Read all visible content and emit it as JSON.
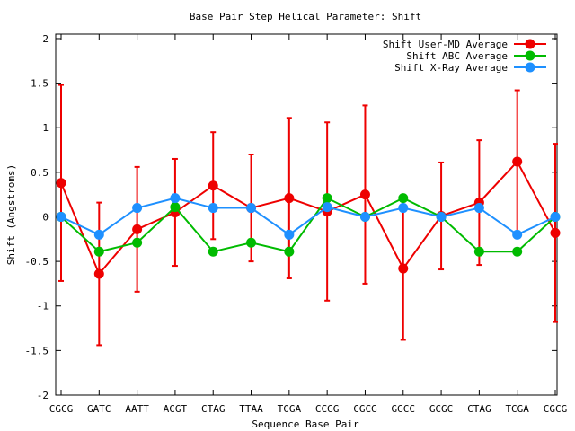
{
  "chart_data": {
    "type": "line",
    "title": "Base Pair Step Helical Parameter: Shift",
    "xlabel": "Sequence Base Pair",
    "ylabel": "Shift (Angstroms)",
    "ylim": [
      -2,
      2.05
    ],
    "yticks": [
      -2,
      -1.5,
      -1,
      -0.5,
      0,
      0.5,
      1,
      1.5,
      2
    ],
    "ytick_labels": [
      "-2",
      "-1.5",
      "-1",
      "-0.5",
      "0",
      "0.5",
      "1",
      "1.5",
      "2"
    ],
    "categories": [
      "CGCG",
      "GATC",
      "AATT",
      "ACGT",
      "CTAG",
      "TTAA",
      "TCGA",
      "CCGG",
      "CGCG",
      "GGCC",
      "GCGC",
      "CTAG",
      "TCGA",
      "CGCG"
    ],
    "legend_position": "top-right",
    "grid": false,
    "series": [
      {
        "name": "Shift User-MD Average",
        "color": "#ee0000",
        "values": [
          0.38,
          -0.64,
          -0.14,
          0.05,
          0.35,
          0.1,
          0.21,
          0.06,
          0.25,
          -0.58,
          0.01,
          0.16,
          0.62,
          -0.18
        ],
        "error": [
          1.1,
          0.8,
          0.7,
          0.6,
          0.6,
          0.6,
          0.9,
          1.0,
          1.0,
          0.8,
          0.6,
          0.7,
          0.8,
          1.0
        ]
      },
      {
        "name": "Shift ABC Average",
        "color": "#00bb00",
        "values": [
          0.0,
          -0.39,
          -0.29,
          0.11,
          -0.39,
          -0.29,
          -0.39,
          0.21,
          0.0,
          0.21,
          0.0,
          -0.39,
          -0.39,
          0.0
        ]
      },
      {
        "name": "Shift X-Ray Average",
        "color": "#1e90ff",
        "values": [
          0.0,
          -0.2,
          0.1,
          0.21,
          0.1,
          0.1,
          -0.2,
          0.11,
          0.0,
          0.1,
          0.0,
          0.1,
          -0.2,
          0.0
        ]
      }
    ]
  }
}
